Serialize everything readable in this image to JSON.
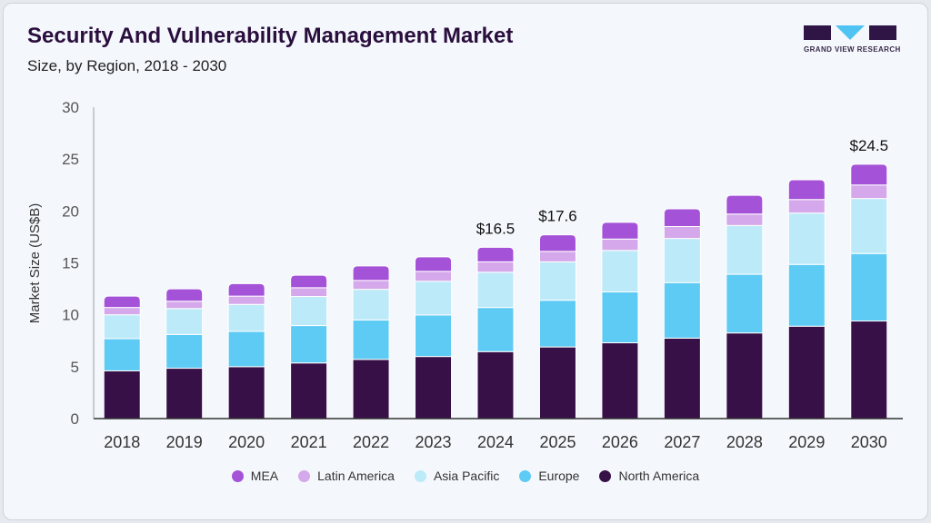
{
  "header": {
    "title": "Security And Vulnerability Management Market",
    "subtitle": "Size, by Region, 2018 - 2030"
  },
  "logo": {
    "text": "GRAND VIEW RESEARCH"
  },
  "chart_data": {
    "type": "bar",
    "stacked": true,
    "title": "Security And Vulnerability Management Market",
    "subtitle": "Size, by Region, 2018 - 2030",
    "xlabel": "",
    "ylabel": "Market Size (US$B)",
    "ylim": [
      0,
      30
    ],
    "yticks": [
      0,
      5,
      10,
      15,
      20,
      25,
      30
    ],
    "grid": false,
    "legend_position": "bottom",
    "categories": [
      "2018",
      "2019",
      "2020",
      "2021",
      "2022",
      "2023",
      "2024",
      "2025",
      "2026",
      "2027",
      "2028",
      "2029",
      "2030"
    ],
    "series": [
      {
        "name": "North America",
        "color": "#371047",
        "values": [
          4.6,
          4.85,
          5.0,
          5.36,
          5.7,
          5.98,
          6.45,
          6.9,
          7.3,
          7.75,
          8.25,
          8.9,
          9.4
        ]
      },
      {
        "name": "Europe",
        "color": "#5ecbf5",
        "values": [
          3.1,
          3.25,
          3.4,
          3.6,
          3.8,
          4.0,
          4.25,
          4.5,
          4.9,
          5.35,
          5.65,
          5.95,
          6.5
        ]
      },
      {
        "name": "Asia Pacific",
        "color": "#bdeaf9",
        "values": [
          2.3,
          2.5,
          2.6,
          2.8,
          2.95,
          3.25,
          3.4,
          3.7,
          4.0,
          4.25,
          4.7,
          4.95,
          5.3
        ]
      },
      {
        "name": "Latin America",
        "color": "#d4a8ea",
        "values": [
          0.7,
          0.7,
          0.8,
          0.85,
          0.85,
          0.95,
          1.0,
          1.0,
          1.1,
          1.15,
          1.1,
          1.3,
          1.3
        ]
      },
      {
        "name": "MEA",
        "color": "#a452d8",
        "values": [
          1.1,
          1.2,
          1.2,
          1.2,
          1.4,
          1.4,
          1.4,
          1.6,
          1.6,
          1.7,
          1.8,
          1.9,
          2.0
        ]
      }
    ],
    "annotations": [
      {
        "category": "2024",
        "text": "$16.5"
      },
      {
        "category": "2025",
        "text": "$17.6"
      },
      {
        "category": "2030",
        "text": "$24.5"
      }
    ],
    "legend_order": [
      "MEA",
      "Latin America",
      "Asia Pacific",
      "Europe",
      "North America"
    ]
  }
}
